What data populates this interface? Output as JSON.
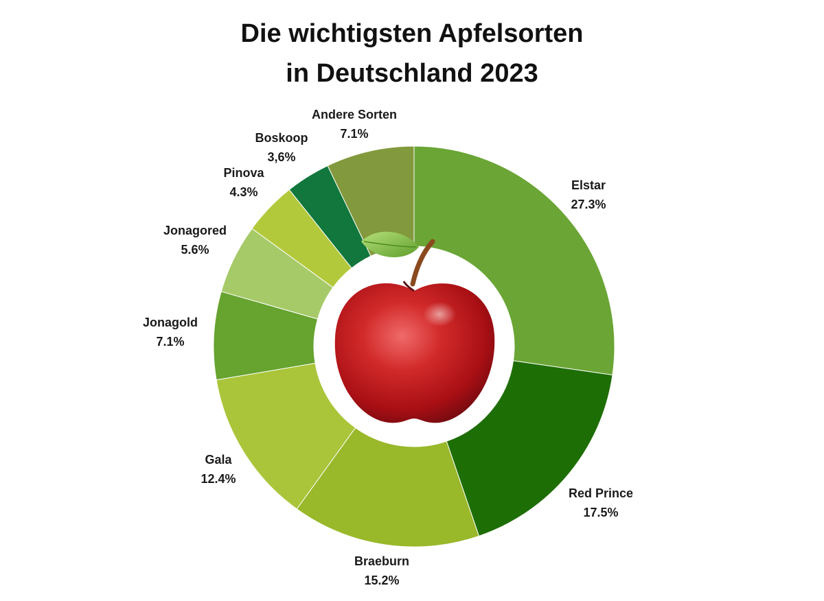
{
  "title_lines": [
    "Die wichtigsten Apfelsorten",
    "in Deutschland 2023"
  ],
  "chart_data": {
    "type": "pie",
    "variant": "donut",
    "title": "Die wichtigsten Apfelsorten in Deutschland 2023",
    "unit": "%",
    "slices": [
      {
        "name": "Elstar",
        "value": 27.3,
        "label": "27.3%",
        "color": "#6aa535"
      },
      {
        "name": "Red Prince",
        "value": 17.5,
        "label": "17.5%",
        "color": "#1e6e06"
      },
      {
        "name": "Braeburn",
        "value": 15.2,
        "label": "15.2%",
        "color": "#99b82a"
      },
      {
        "name": "Gala",
        "value": 12.4,
        "label": "12.4%",
        "color": "#aac53a"
      },
      {
        "name": "Jonagold",
        "value": 7.1,
        "label": "7.1%",
        "color": "#66a32f"
      },
      {
        "name": "Jonagored",
        "value": 5.6,
        "label": "5.6%",
        "color": "#a6ca68"
      },
      {
        "name": "Pinova",
        "value": 4.3,
        "label": "4.3%",
        "color": "#b3c93c"
      },
      {
        "name": "Boskoop",
        "value": 3.6,
        "label": "3,6%",
        "color": "#11773c"
      },
      {
        "name": "Andere Sorten",
        "value": 7.1,
        "label": "7.1%",
        "color": "#82993d"
      }
    ],
    "center_image": "red-apple"
  }
}
